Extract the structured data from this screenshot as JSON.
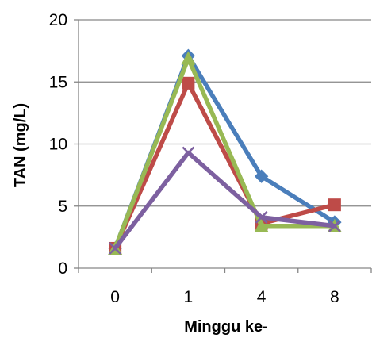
{
  "chart_data": {
    "type": "line",
    "categories": [
      "0",
      "1",
      "4",
      "8"
    ],
    "xlabel": "Minggu ke-",
    "ylabel": "TAN (mg/L)",
    "ylim": [
      0,
      20
    ],
    "yticks": [
      0,
      5,
      10,
      15,
      20
    ],
    "grid": "horizontal",
    "legend": "none",
    "series": [
      {
        "color": "#4a7ebb",
        "marker": "diamond",
        "values": [
          1.6,
          17.1,
          7.4,
          3.7
        ]
      },
      {
        "color": "#be4b48",
        "marker": "square",
        "values": [
          1.6,
          14.9,
          3.6,
          5.1
        ]
      },
      {
        "color": "#98b954",
        "marker": "triangle",
        "values": [
          1.6,
          16.9,
          3.4,
          3.4
        ]
      },
      {
        "color": "#7d60a0",
        "marker": "x",
        "values": [
          1.6,
          9.3,
          4.1,
          3.4
        ]
      }
    ]
  }
}
